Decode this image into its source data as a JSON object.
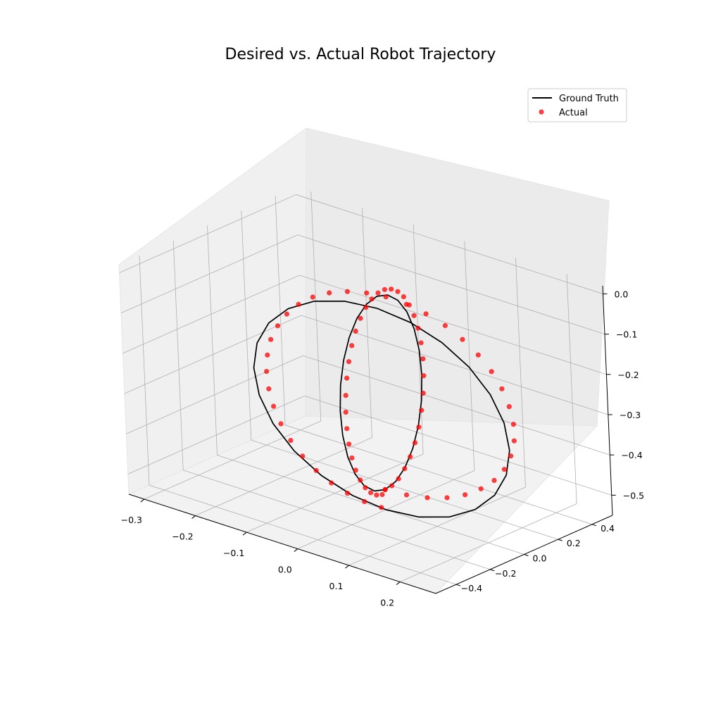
{
  "chart_data": {
    "type": "scatter",
    "projection": "3d",
    "title": "Desired vs. Actual Robot Trajectory",
    "xlim": [
      -0.33,
      0.27
    ],
    "ylim": [
      -0.52,
      0.52
    ],
    "zlim": [
      -0.55,
      0.02
    ],
    "x_ticks": [
      "−0.3",
      "−0.2",
      "−0.1",
      "0.0",
      "0.1",
      "0.2"
    ],
    "x_tick_values": [
      -0.3,
      -0.2,
      -0.1,
      0.0,
      0.1,
      0.2
    ],
    "y_ticks": [
      "−0.4",
      "−0.2",
      "0.0",
      "0.2",
      "0.4"
    ],
    "y_tick_values": [
      -0.4,
      -0.2,
      0.0,
      0.2,
      0.4
    ],
    "z_ticks": [
      "−0.5",
      "−0.4",
      "−0.3",
      "−0.2",
      "−0.1",
      "0.0"
    ],
    "z_tick_values": [
      -0.5,
      -0.4,
      -0.3,
      -0.2,
      -0.1,
      0.0
    ],
    "grid": true,
    "legend_position": "top-right",
    "legend": [
      {
        "label": "Ground Truth",
        "kind": "line",
        "color": "#000000"
      },
      {
        "label": "Actual",
        "kind": "marker",
        "color": "#ff0000"
      }
    ],
    "series": [
      {
        "name": "Ground Truth",
        "kind": "line",
        "color": "#000000",
        "loops": [
          {
            "plane": "xz",
            "center": [
              0.0,
              0.0,
              -0.3
            ],
            "radius": 0.25,
            "segments": 24
          },
          {
            "plane": "yz",
            "center": [
              0.0,
              0.0,
              -0.26
            ],
            "radius": 0.24,
            "segments": 24
          }
        ]
      },
      {
        "name": "Actual",
        "kind": "scatter",
        "color": "#ff0000",
        "alpha": 0.75,
        "points": [
          [
            0.0,
            0.0,
            -0.5
          ],
          [
            0.042,
            0.0,
            -0.496
          ],
          [
            0.083,
            0.0,
            -0.486
          ],
          [
            0.122,
            0.0,
            -0.47
          ],
          [
            0.158,
            0.0,
            -0.448
          ],
          [
            0.19,
            0.0,
            -0.42
          ],
          [
            0.217,
            0.0,
            -0.388
          ],
          [
            0.238,
            0.0,
            -0.352
          ],
          [
            0.252,
            0.0,
            -0.313
          ],
          [
            0.26,
            0.0,
            -0.272
          ],
          [
            0.26,
            0.0,
            -0.231
          ],
          [
            0.253,
            0.0,
            -0.19
          ],
          [
            0.24,
            0.0,
            -0.151
          ],
          [
            0.221,
            0.0,
            -0.116
          ],
          [
            0.196,
            0.0,
            -0.085
          ],
          [
            0.166,
            0.0,
            -0.059
          ],
          [
            0.133,
            0.0,
            -0.038
          ],
          [
            0.096,
            0.0,
            -0.024
          ],
          [
            0.058,
            0.0,
            -0.016
          ],
          [
            0.018,
            0.0,
            -0.014
          ],
          [
            -0.02,
            0.0,
            -0.02
          ],
          [
            -0.058,
            0.0,
            -0.032
          ],
          [
            -0.094,
            0.0,
            -0.05
          ],
          [
            -0.127,
            0.0,
            -0.074
          ],
          [
            -0.156,
            0.0,
            -0.104
          ],
          [
            -0.18,
            0.0,
            -0.138
          ],
          [
            -0.199,
            0.0,
            -0.175
          ],
          [
            -0.214,
            0.0,
            -0.215
          ],
          [
            -0.222,
            0.0,
            -0.257
          ],
          [
            -0.225,
            0.0,
            -0.299
          ],
          [
            -0.222,
            0.0,
            -0.341
          ],
          [
            -0.214,
            0.0,
            -0.381
          ],
          [
            -0.201,
            0.0,
            -0.419
          ],
          [
            -0.183,
            0.0,
            -0.453
          ],
          [
            -0.161,
            0.0,
            -0.483
          ],
          [
            -0.135,
            0.0,
            -0.508
          ],
          [
            -0.106,
            0.0,
            -0.527
          ],
          [
            -0.075,
            0.0,
            -0.54
          ],
          [
            -0.042,
            0.0,
            -0.547
          ],
          [
            -0.009,
            0.0,
            -0.548
          ],
          [
            0.0,
            0.0,
            -0.5
          ],
          [
            0.0,
            0.04,
            -0.498
          ],
          [
            0.0,
            0.08,
            -0.488
          ],
          [
            0.0,
            0.118,
            -0.47
          ],
          [
            0.0,
            0.153,
            -0.447
          ],
          [
            0.0,
            0.184,
            -0.418
          ],
          [
            0.0,
            0.21,
            -0.384
          ],
          [
            0.0,
            0.23,
            -0.346
          ],
          [
            0.0,
            0.244,
            -0.306
          ],
          [
            0.0,
            0.251,
            -0.264
          ],
          [
            0.0,
            0.251,
            -0.222
          ],
          [
            0.0,
            0.244,
            -0.181
          ],
          [
            0.0,
            0.23,
            -0.142
          ],
          [
            0.0,
            0.21,
            -0.107
          ],
          [
            0.0,
            0.185,
            -0.076
          ],
          [
            0.0,
            0.155,
            -0.05
          ],
          [
            0.0,
            0.122,
            -0.031
          ],
          [
            0.0,
            0.085,
            -0.018
          ],
          [
            0.0,
            0.047,
            -0.012
          ],
          [
            0.0,
            0.008,
            -0.013
          ],
          [
            0.0,
            -0.03,
            -0.021
          ],
          [
            0.0,
            -0.066,
            -0.035
          ],
          [
            0.0,
            -0.1,
            -0.056
          ],
          [
            0.0,
            -0.131,
            -0.082
          ],
          [
            0.0,
            -0.157,
            -0.113
          ],
          [
            0.0,
            -0.178,
            -0.149
          ],
          [
            0.0,
            -0.194,
            -0.187
          ],
          [
            0.0,
            -0.204,
            -0.228
          ],
          [
            0.0,
            -0.208,
            -0.269
          ],
          [
            0.0,
            -0.206,
            -0.31
          ],
          [
            0.0,
            -0.198,
            -0.35
          ],
          [
            0.0,
            -0.184,
            -0.387
          ],
          [
            0.0,
            -0.165,
            -0.421
          ],
          [
            0.0,
            -0.141,
            -0.45
          ],
          [
            0.0,
            -0.114,
            -0.474
          ],
          [
            0.0,
            -0.084,
            -0.492
          ],
          [
            0.0,
            -0.051,
            -0.504
          ],
          [
            0.0,
            -0.018,
            -0.509
          ]
        ]
      }
    ]
  }
}
